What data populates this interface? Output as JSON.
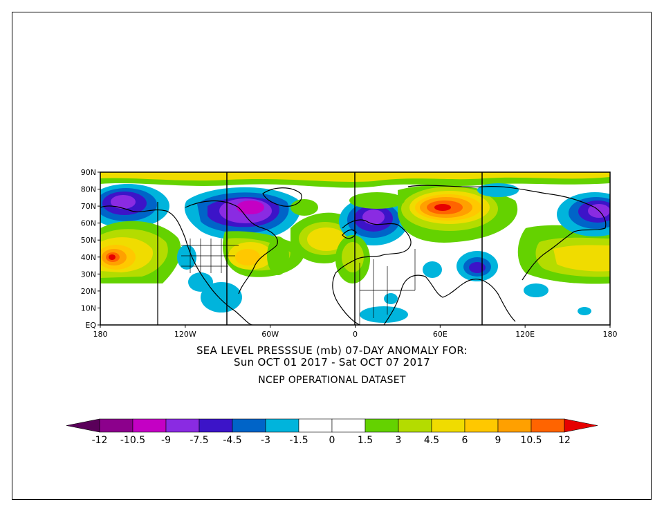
{
  "title": {
    "line1": "SEA LEVEL PRESSSUE (mb)   07-DAY ANOMALY FOR:",
    "line2": "Sun OCT 01 2017 - Sat OCT 07 2017",
    "line3": "NCEP OPERATIONAL DATASET"
  },
  "lat_labels": [
    "90N",
    "80N",
    "70N",
    "60N",
    "50N",
    "40N",
    "30N",
    "20N",
    "10N",
    "EQ"
  ],
  "lon_labels": [
    "180",
    "120W",
    "60W",
    "0",
    "60E",
    "120E",
    "180"
  ],
  "colorbar": {
    "labels": [
      "-12",
      "-10.5",
      "-9",
      "-7.5",
      "-4.5",
      "-3",
      "-1.5",
      "0",
      "1.5",
      "3",
      "4.5",
      "6",
      "9",
      "10.5",
      "12"
    ],
    "colors": {
      "lt_-12": "#5a005a",
      "neg": [
        "#8c008c",
        "#c400c4",
        "#8a2be2",
        "#3c14c8",
        "#0064c8",
        "#00b4dc"
      ],
      "zero": "#ffffff",
      "pos": [
        "#64d200",
        "#b4dc00",
        "#f0dc00",
        "#ffc800",
        "#ffa000",
        "#ff6400"
      ],
      "gt_12": "#e60000"
    }
  }
}
